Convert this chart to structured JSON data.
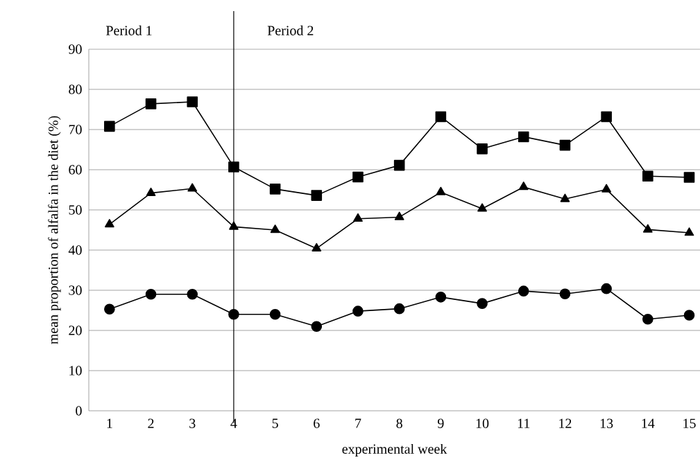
{
  "chart_data": {
    "type": "line",
    "xlabel": "experimental week",
    "ylabel": "mean proportion of alfalfa in the diet (%)",
    "x": [
      1,
      2,
      3,
      4,
      5,
      6,
      7,
      8,
      9,
      10,
      11,
      12,
      13,
      14,
      15
    ],
    "series": [
      {
        "color": "#000000",
        "marker": "square",
        "values": [
          70.8,
          76.4,
          76.9,
          60.7,
          55.2,
          53.6,
          58.2,
          61.1,
          73.2,
          65.2,
          68.2,
          66.1,
          73.2,
          58.4,
          58.1
        ]
      },
      {
        "color": "#000000",
        "marker": "triangle",
        "values": [
          46.4,
          54.2,
          55.3,
          45.8,
          45.0,
          40.4,
          47.8,
          48.2,
          54.4,
          50.3,
          55.7,
          52.7,
          55.1,
          45.1,
          44.3
        ]
      },
      {
        "color": "#000000",
        "marker": "circle",
        "values": [
          25.3,
          29.0,
          29.0,
          24.0,
          24.0,
          21.0,
          24.8,
          25.4,
          28.3,
          26.7,
          29.8,
          29.1,
          30.4,
          22.8,
          23.8
        ]
      }
    ],
    "xlim": [
      0.5,
      15.26
    ],
    "xticks": [
      1,
      2,
      3,
      4,
      5,
      6,
      7,
      8,
      9,
      10,
      11,
      12,
      13,
      14,
      15
    ],
    "ylim": [
      0,
      90
    ],
    "yticks": [
      0,
      10,
      20,
      30,
      40,
      50,
      60,
      70,
      80,
      90
    ],
    "grid": "y",
    "line_style": "solid",
    "ref_lines": [
      {
        "axis": "x",
        "value": 4,
        "color": "#000000"
      }
    ],
    "annotations": [
      "Period 1",
      "Period 2"
    ]
  }
}
